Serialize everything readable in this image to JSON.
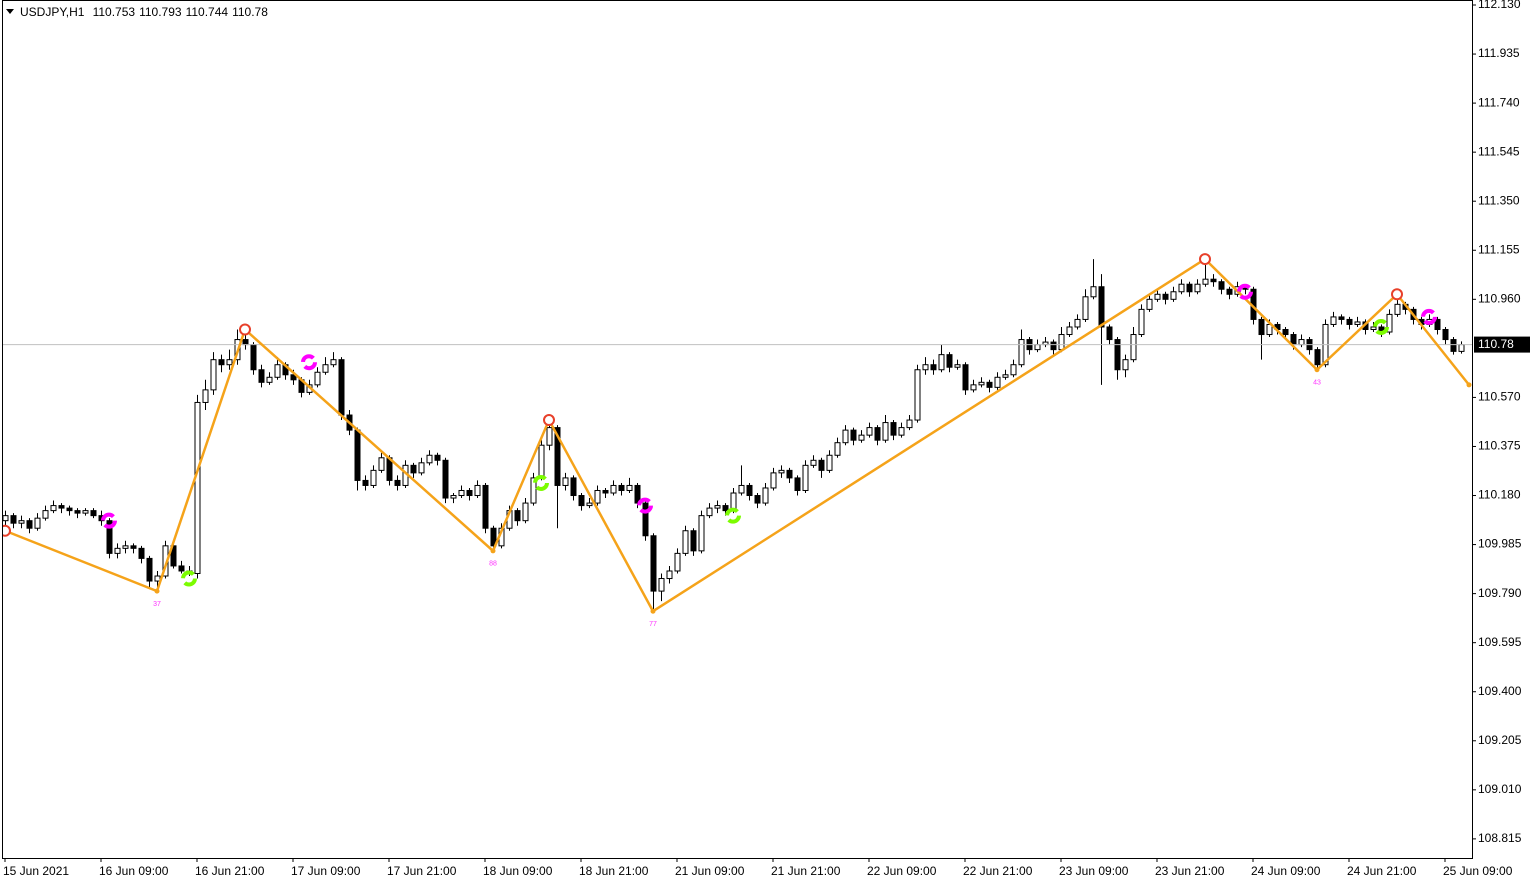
{
  "chart_data": {
    "type": "candlestick",
    "title": "USDJPY,H1",
    "ylim": [
      108.739,
      112.13
    ],
    "yticks": [
      {
        "value": 112.13,
        "label": "112.130"
      },
      111.935,
      {
        "value": 111.74,
        "label": "111.740"
      },
      111.545,
      {
        "value": 111.35,
        "label": "111.350"
      },
      111.155,
      {
        "value": 110.96,
        "label": "110.960"
      },
      {
        "value": 110.57,
        "label": "110.570"
      },
      110.375,
      {
        "value": 110.18,
        "label": "110.180"
      },
      109.985,
      {
        "value": 109.79,
        "label": "109.790"
      },
      109.595,
      {
        "value": 109.4,
        "label": "109.400"
      },
      109.205,
      {
        "value": 109.01,
        "label": "109.010"
      },
      108.815
    ],
    "xticks": [
      {
        "value": 0,
        "label": "15 Jun 2021"
      },
      {
        "value": 12,
        "label": "16 Jun 09:00"
      },
      {
        "value": 24,
        "label": "16 Jun 21:00"
      },
      {
        "value": 36,
        "label": "17 Jun 09:00"
      },
      {
        "value": 48,
        "label": "17 Jun 21:00"
      },
      {
        "value": 60,
        "label": "18 Jun 09:00"
      },
      {
        "value": 72,
        "label": "18 Jun 21:00"
      },
      {
        "value": 84,
        "label": "21 Jun 09:00"
      },
      {
        "value": 96,
        "label": "21 Jun 21:00"
      },
      {
        "value": 108,
        "label": "22 Jun 09:00"
      },
      {
        "value": 120,
        "label": "22 Jun 21:00"
      },
      {
        "value": 132,
        "label": "23 Jun 09:00"
      },
      {
        "value": 144,
        "label": "23 Jun 21:00"
      },
      {
        "value": 156,
        "label": "24 Jun 09:00"
      },
      {
        "value": 168,
        "label": "24 Jun 21:00"
      },
      {
        "value": 180,
        "label": "25 Jun 09:00"
      }
    ],
    "grid": false,
    "bull_color": "#ffffff",
    "bear_color": "#000000",
    "ohlc": [
      [
        110.08,
        110.12,
        110.06,
        110.1
      ],
      [
        110.1,
        110.11,
        110.05,
        110.07
      ],
      [
        110.07,
        110.1,
        110.05,
        110.08
      ],
      [
        110.08,
        110.09,
        110.03,
        110.05
      ],
      [
        110.05,
        110.11,
        110.04,
        110.09
      ],
      [
        110.09,
        110.14,
        110.08,
        110.12
      ],
      [
        110.12,
        110.16,
        110.11,
        110.14
      ],
      [
        110.14,
        110.15,
        110.11,
        110.13
      ],
      [
        110.13,
        110.14,
        110.1,
        110.12
      ],
      [
        110.12,
        110.13,
        110.09,
        110.11
      ],
      [
        110.11,
        110.13,
        110.1,
        110.12
      ],
      [
        110.12,
        110.13,
        110.09,
        110.1
      ],
      [
        110.1,
        110.12,
        110.06,
        110.08
      ],
      [
        110.08,
        110.09,
        109.93,
        109.95
      ],
      [
        109.95,
        109.99,
        109.93,
        109.97
      ],
      [
        109.97,
        110.0,
        109.95,
        109.98
      ],
      [
        109.98,
        109.99,
        109.95,
        109.97
      ],
      [
        109.97,
        109.98,
        109.91,
        109.93
      ],
      [
        109.93,
        109.94,
        109.81,
        109.84
      ],
      [
        109.84,
        109.88,
        109.8,
        109.86
      ],
      [
        109.86,
        110.0,
        109.85,
        109.98
      ],
      [
        109.98,
        109.99,
        109.89,
        109.9
      ],
      [
        109.9,
        109.92,
        109.87,
        109.88
      ],
      [
        109.88,
        109.9,
        109.86,
        109.87
      ],
      [
        109.87,
        110.58,
        109.85,
        110.55
      ],
      [
        110.55,
        110.64,
        110.52,
        110.6
      ],
      [
        110.6,
        110.75,
        110.58,
        110.72
      ],
      [
        110.72,
        110.74,
        110.67,
        110.7
      ],
      [
        110.7,
        110.76,
        110.68,
        110.72
      ],
      [
        110.72,
        110.84,
        110.7,
        110.8
      ],
      [
        110.8,
        110.83,
        110.76,
        110.78
      ],
      [
        110.78,
        110.79,
        110.66,
        110.68
      ],
      [
        110.68,
        110.7,
        110.61,
        110.63
      ],
      [
        110.63,
        110.67,
        110.62,
        110.65
      ],
      [
        110.65,
        110.73,
        110.64,
        110.7
      ],
      [
        110.7,
        110.71,
        110.64,
        110.66
      ],
      [
        110.66,
        110.68,
        110.62,
        110.64
      ],
      [
        110.64,
        110.65,
        110.57,
        110.59
      ],
      [
        110.59,
        110.64,
        110.58,
        110.62
      ],
      [
        110.62,
        110.69,
        110.61,
        110.67
      ],
      [
        110.67,
        110.73,
        110.66,
        110.7
      ],
      [
        110.7,
        110.75,
        110.69,
        110.72
      ],
      [
        110.72,
        110.73,
        110.48,
        110.5
      ],
      [
        110.5,
        110.52,
        110.42,
        110.44
      ],
      [
        110.44,
        110.45,
        110.2,
        110.24
      ],
      [
        110.24,
        110.26,
        110.2,
        110.22
      ],
      [
        110.22,
        110.3,
        110.21,
        110.28
      ],
      [
        110.28,
        110.35,
        110.27,
        110.33
      ],
      [
        110.33,
        110.34,
        110.22,
        110.24
      ],
      [
        110.24,
        110.26,
        110.2,
        110.22
      ],
      [
        110.22,
        110.32,
        110.21,
        110.3
      ],
      [
        110.3,
        110.31,
        110.25,
        110.27
      ],
      [
        110.27,
        110.33,
        110.26,
        110.31
      ],
      [
        110.31,
        110.36,
        110.3,
        110.34
      ],
      [
        110.34,
        110.35,
        110.3,
        110.32
      ],
      [
        110.32,
        110.33,
        110.15,
        110.17
      ],
      [
        110.17,
        110.19,
        110.15,
        110.18
      ],
      [
        110.18,
        110.22,
        110.17,
        110.2
      ],
      [
        110.2,
        110.21,
        110.16,
        110.18
      ],
      [
        110.18,
        110.24,
        110.17,
        110.22
      ],
      [
        110.22,
        110.23,
        110.03,
        110.05
      ],
      [
        110.05,
        110.06,
        109.96,
        109.98
      ],
      [
        109.98,
        110.07,
        109.97,
        110.05
      ],
      [
        110.05,
        110.14,
        110.04,
        110.12
      ],
      [
        110.12,
        110.13,
        110.06,
        110.08
      ],
      [
        110.08,
        110.17,
        110.07,
        110.15
      ],
      [
        110.15,
        110.27,
        110.14,
        110.25
      ],
      [
        110.25,
        110.4,
        110.24,
        110.38
      ],
      [
        110.38,
        110.5,
        110.36,
        110.45
      ],
      [
        110.45,
        110.46,
        110.05,
        110.22
      ],
      [
        110.22,
        110.27,
        110.2,
        110.25
      ],
      [
        110.25,
        110.26,
        110.16,
        110.18
      ],
      [
        110.18,
        110.19,
        110.12,
        110.14
      ],
      [
        110.14,
        110.17,
        110.13,
        110.15
      ],
      [
        110.15,
        110.22,
        110.14,
        110.2
      ],
      [
        110.2,
        110.21,
        110.17,
        110.19
      ],
      [
        110.19,
        110.24,
        110.18,
        110.22
      ],
      [
        110.22,
        110.23,
        110.18,
        110.2
      ],
      [
        110.2,
        110.25,
        110.19,
        110.22
      ],
      [
        110.22,
        110.23,
        110.13,
        110.15
      ],
      [
        110.15,
        110.16,
        110.0,
        110.02
      ],
      [
        110.02,
        110.03,
        109.72,
        109.8
      ],
      [
        109.8,
        109.87,
        109.76,
        109.85
      ],
      [
        109.85,
        109.9,
        109.83,
        109.88
      ],
      [
        109.88,
        109.97,
        109.87,
        109.95
      ],
      [
        109.95,
        110.06,
        109.94,
        110.04
      ],
      [
        110.04,
        110.05,
        109.94,
        109.96
      ],
      [
        109.96,
        110.12,
        109.95,
        110.1
      ],
      [
        110.1,
        110.15,
        110.09,
        110.13
      ],
      [
        110.13,
        110.16,
        110.11,
        110.14
      ],
      [
        110.14,
        110.15,
        110.1,
        110.12
      ],
      [
        110.12,
        110.21,
        110.11,
        110.19
      ],
      [
        110.19,
        110.3,
        110.18,
        110.22
      ],
      [
        110.22,
        110.23,
        110.16,
        110.18
      ],
      [
        110.18,
        110.19,
        110.13,
        110.15
      ],
      [
        110.15,
        110.23,
        110.14,
        110.21
      ],
      [
        110.21,
        110.29,
        110.2,
        110.27
      ],
      [
        110.27,
        110.3,
        110.25,
        110.28
      ],
      [
        110.28,
        110.29,
        110.23,
        110.25
      ],
      [
        110.25,
        110.26,
        110.18,
        110.2
      ],
      [
        110.2,
        110.32,
        110.19,
        110.3
      ],
      [
        110.3,
        110.34,
        110.29,
        110.32
      ],
      [
        110.32,
        110.33,
        110.25,
        110.28
      ],
      [
        110.28,
        110.36,
        110.27,
        110.34
      ],
      [
        110.34,
        110.41,
        110.33,
        110.39
      ],
      [
        110.39,
        110.46,
        110.38,
        110.44
      ],
      [
        110.44,
        110.45,
        110.38,
        110.4
      ],
      [
        110.4,
        110.44,
        110.39,
        110.42
      ],
      [
        110.42,
        110.47,
        110.41,
        110.45
      ],
      [
        110.45,
        110.46,
        110.38,
        110.4
      ],
      [
        110.4,
        110.5,
        110.39,
        110.47
      ],
      [
        110.47,
        110.48,
        110.4,
        110.42
      ],
      [
        110.42,
        110.47,
        110.41,
        110.45
      ],
      [
        110.45,
        110.5,
        110.44,
        110.48
      ],
      [
        110.48,
        110.7,
        110.47,
        110.68
      ],
      [
        110.68,
        110.73,
        110.66,
        110.7
      ],
      [
        110.7,
        110.72,
        110.66,
        110.68
      ],
      [
        110.68,
        110.78,
        110.67,
        110.74
      ],
      [
        110.74,
        110.75,
        110.67,
        110.69
      ],
      [
        110.69,
        110.72,
        110.68,
        110.7
      ],
      [
        110.7,
        110.71,
        110.58,
        110.6
      ],
      [
        110.6,
        110.64,
        110.59,
        110.62
      ],
      [
        110.62,
        110.65,
        110.61,
        110.63
      ],
      [
        110.63,
        110.64,
        110.59,
        110.61
      ],
      [
        110.61,
        110.67,
        110.6,
        110.65
      ],
      [
        110.65,
        110.68,
        110.64,
        110.66
      ],
      [
        110.66,
        110.72,
        110.65,
        110.7
      ],
      [
        110.7,
        110.84,
        110.69,
        110.8
      ],
      [
        110.8,
        110.81,
        110.74,
        110.76
      ],
      [
        110.76,
        110.8,
        110.75,
        110.78
      ],
      [
        110.78,
        110.81,
        110.77,
        110.79
      ],
      [
        110.79,
        110.8,
        110.74,
        110.76
      ],
      [
        110.76,
        110.85,
        110.75,
        110.82
      ],
      [
        110.82,
        110.87,
        110.81,
        110.85
      ],
      [
        110.85,
        110.9,
        110.84,
        110.88
      ],
      [
        110.88,
        111.0,
        110.87,
        110.97
      ],
      [
        110.97,
        111.12,
        110.96,
        111.01
      ],
      [
        111.01,
        111.06,
        110.62,
        110.85
      ],
      [
        110.85,
        110.86,
        110.78,
        110.8
      ],
      [
        110.8,
        110.81,
        110.64,
        110.68
      ],
      [
        110.68,
        110.74,
        110.65,
        110.72
      ],
      [
        110.72,
        110.85,
        110.71,
        110.82
      ],
      [
        110.82,
        110.94,
        110.81,
        110.92
      ],
      [
        110.92,
        110.98,
        110.91,
        110.96
      ],
      [
        110.96,
        111.0,
        110.95,
        110.98
      ],
      [
        110.98,
        110.99,
        110.94,
        110.96
      ],
      [
        110.96,
        111.01,
        110.95,
        110.99
      ],
      [
        110.99,
        111.04,
        110.98,
        111.02
      ],
      [
        111.02,
        111.03,
        110.97,
        110.99
      ],
      [
        110.99,
        111.04,
        110.98,
        111.02
      ],
      [
        111.02,
        111.12,
        111.01,
        111.04
      ],
      [
        111.04,
        111.06,
        111.01,
        111.03
      ],
      [
        111.03,
        111.04,
        110.98,
        111.0
      ],
      [
        111.0,
        111.01,
        110.96,
        110.98
      ],
      [
        110.98,
        111.03,
        110.97,
        111.01
      ],
      [
        111.01,
        111.02,
        110.98,
        111.0
      ],
      [
        111.0,
        111.01,
        110.86,
        110.88
      ],
      [
        110.88,
        110.89,
        110.72,
        110.82
      ],
      [
        110.82,
        110.88,
        110.81,
        110.86
      ],
      [
        110.86,
        110.87,
        110.82,
        110.84
      ],
      [
        110.84,
        110.85,
        110.8,
        110.82
      ],
      [
        110.82,
        110.83,
        110.76,
        110.78
      ],
      [
        110.78,
        110.82,
        110.77,
        110.8
      ],
      [
        110.8,
        110.81,
        110.74,
        110.76
      ],
      [
        110.76,
        110.77,
        110.68,
        110.7
      ],
      [
        110.7,
        110.88,
        110.69,
        110.86
      ],
      [
        110.86,
        110.91,
        110.85,
        110.89
      ],
      [
        110.89,
        110.9,
        110.86,
        110.88
      ],
      [
        110.88,
        110.89,
        110.84,
        110.86
      ],
      [
        110.86,
        110.89,
        110.85,
        110.87
      ],
      [
        110.87,
        110.88,
        110.82,
        110.84
      ],
      [
        110.84,
        110.87,
        110.83,
        110.85
      ],
      [
        110.85,
        110.86,
        110.81,
        110.83
      ],
      [
        110.83,
        110.92,
        110.82,
        110.9
      ],
      [
        110.9,
        110.98,
        110.89,
        110.94
      ],
      [
        110.94,
        110.95,
        110.9,
        110.92
      ],
      [
        110.92,
        110.93,
        110.86,
        110.88
      ],
      [
        110.88,
        110.89,
        110.84,
        110.86
      ],
      [
        110.86,
        110.9,
        110.85,
        110.88
      ],
      [
        110.88,
        110.89,
        110.82,
        110.84
      ],
      [
        110.84,
        110.85,
        110.78,
        110.8
      ],
      [
        110.8,
        110.81,
        110.74,
        110.753
      ],
      [
        110.753,
        110.793,
        110.744,
        110.78
      ]
    ],
    "zigzag": {
      "color": "#f5a31a",
      "x": [
        0,
        19,
        30,
        61,
        68,
        81,
        150,
        164,
        174,
        183
      ],
      "values": [
        110.04,
        109.8,
        110.84,
        109.96,
        110.48,
        109.72,
        111.12,
        110.68,
        110.98,
        110.62
      ],
      "labels": [
        null,
        "37",
        null,
        "88",
        null,
        "77",
        null,
        "43",
        null,
        null
      ]
    },
    "buy_signals": {
      "color": "#7cfc00",
      "x": [
        23,
        67,
        91,
        172
      ],
      "values": [
        109.85,
        110.23,
        110.1,
        110.85
      ]
    },
    "sell_signals": {
      "color": "#ff00ff",
      "x": [
        13,
        38,
        80,
        155,
        178
      ],
      "values": [
        110.08,
        110.71,
        110.14,
        110.99,
        110.89
      ]
    }
  }
}
